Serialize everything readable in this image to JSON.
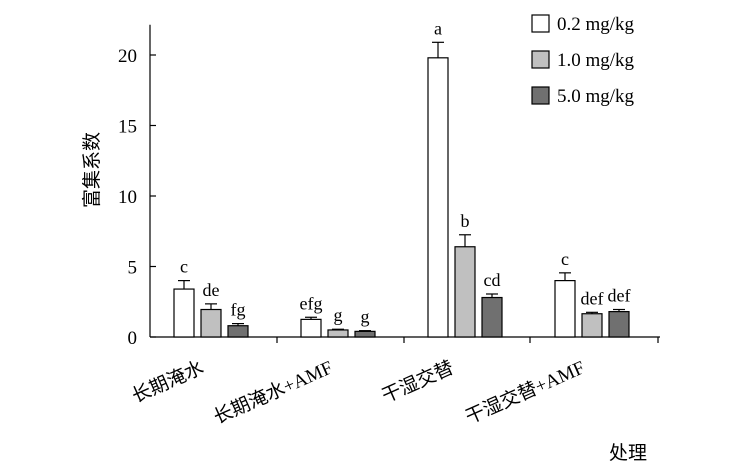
{
  "chart_data": {
    "type": "bar",
    "title": "",
    "xlabel": "处理",
    "ylabel": "富集系数",
    "ylim": [
      0,
      22
    ],
    "yticks": [
      0,
      5,
      10,
      15,
      20
    ],
    "categories": [
      "长期淹水",
      "长期淹水+AMF",
      "干湿交替",
      "干湿交替+AMF"
    ],
    "series": [
      {
        "name": "0.2 mg/kg",
        "color": "#ffffff",
        "values": [
          3.4,
          1.25,
          19.8,
          4.0
        ],
        "errors": [
          0.6,
          0.15,
          1.1,
          0.55
        ],
        "letters": [
          "c",
          "efg",
          "a",
          "c"
        ]
      },
      {
        "name": "1.0 mg/kg",
        "color": "#c0c0c0",
        "values": [
          1.95,
          0.5,
          6.4,
          1.65
        ],
        "errors": [
          0.4,
          0.05,
          0.85,
          0.1
        ],
        "letters": [
          "de",
          "g",
          "b",
          "def"
        ]
      },
      {
        "name": "5.0 mg/kg",
        "color": "#707070",
        "values": [
          0.8,
          0.4,
          2.8,
          1.8
        ],
        "errors": [
          0.15,
          0.05,
          0.25,
          0.15
        ],
        "letters": [
          "fg",
          "g",
          "cd",
          "def"
        ]
      }
    ],
    "legend_position": "top-right",
    "grid": false
  }
}
